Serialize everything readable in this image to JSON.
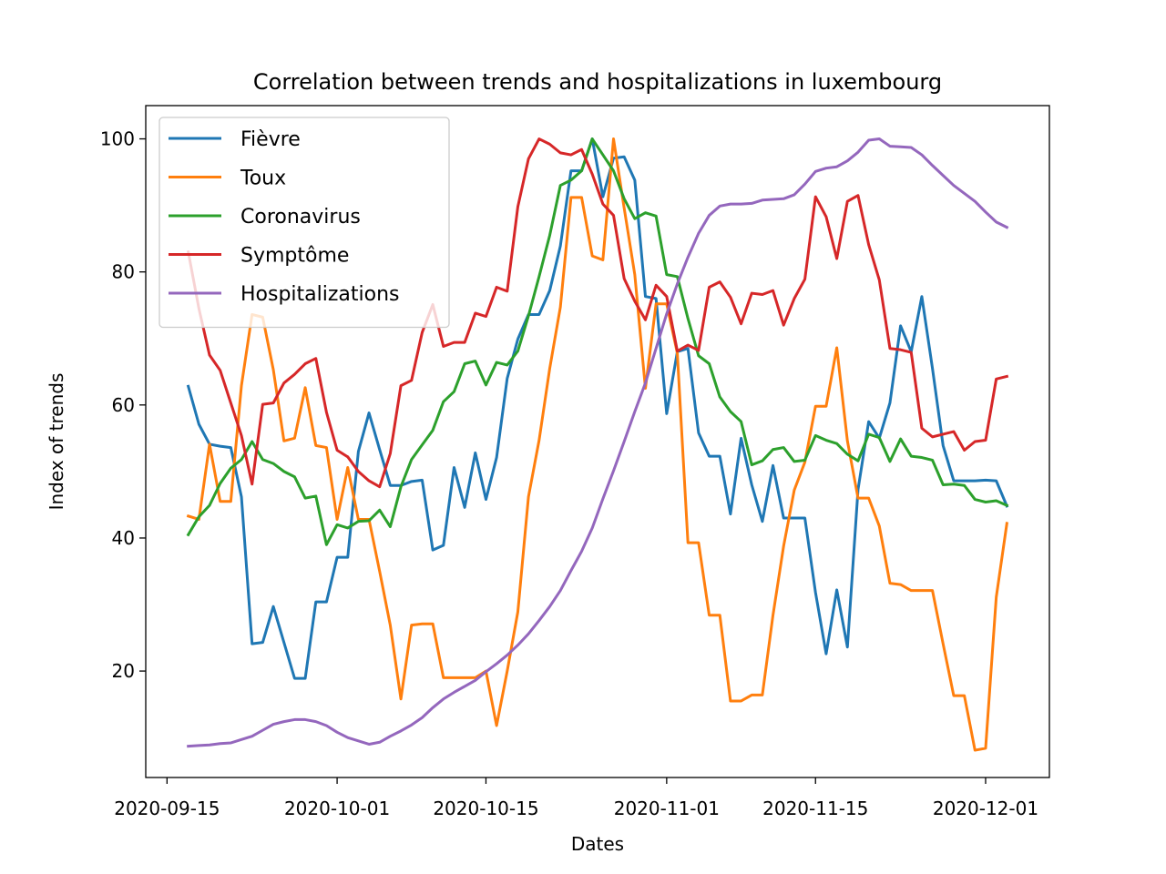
{
  "chart_data": {
    "type": "line",
    "title": "Correlation between trends and hospitalizations in luxembourg",
    "xlabel": "Dates",
    "ylabel": "Index of trends",
    "x_start": "2020-09-17",
    "x_step_days": 1,
    "xlim": [
      "2020-09-13",
      "2020-12-07"
    ],
    "ylim": [
      4,
      105
    ],
    "xticks": [
      "2020-09-15",
      "2020-10-01",
      "2020-10-15",
      "2020-11-01",
      "2020-11-15",
      "2020-12-01"
    ],
    "yticks": [
      20,
      40,
      60,
      80,
      100
    ],
    "grid": false,
    "legend_position": "top-left",
    "series": [
      {
        "name": "Fièvre",
        "color": "#1f77b4",
        "values": [
          62.8,
          57.1,
          54.1,
          53.8,
          53.6,
          46.2,
          24.1,
          24.3,
          29.7,
          24.3,
          18.9,
          18.9,
          30.4,
          30.4,
          37.1,
          37.1,
          53.0,
          58.8,
          53.3,
          47.9,
          47.9,
          48.5,
          48.7,
          38.2,
          38.9,
          50.6,
          44.6,
          52.8,
          45.8,
          52.1,
          64.0,
          69.9,
          73.6,
          73.6,
          77.2,
          83.9,
          95.2,
          95.2,
          100.0,
          91.3,
          97.1,
          97.3,
          93.8,
          76.3,
          76.0,
          58.7,
          68.0,
          68.5,
          55.8,
          52.3,
          52.3,
          43.6,
          55.0,
          48.0,
          42.5,
          50.9,
          43.0,
          43.0,
          43.0,
          31.8,
          22.6,
          32.2,
          23.6,
          47.3,
          57.5,
          55.0,
          60.3,
          71.9,
          68.0,
          76.3,
          65.5,
          53.9,
          48.6,
          48.6,
          48.6,
          48.7,
          48.6,
          44.8
        ]
      },
      {
        "name": "Toux",
        "color": "#ff7f0e",
        "values": [
          43.3,
          42.8,
          54.1,
          45.5,
          45.5,
          62.9,
          73.6,
          73.2,
          65.3,
          54.6,
          55.0,
          62.6,
          53.9,
          53.6,
          42.8,
          50.6,
          42.8,
          42.8,
          35.0,
          26.9,
          15.8,
          26.9,
          27.1,
          27.1,
          19.0,
          19.0,
          19.0,
          19.0,
          20.0,
          11.8,
          20.0,
          28.9,
          46.2,
          54.7,
          65.5,
          74.7,
          91.2,
          91.2,
          82.4,
          81.8,
          100.0,
          89.6,
          79.6,
          62.5,
          75.2,
          75.2,
          67.8,
          39.3,
          39.3,
          28.4,
          28.4,
          15.5,
          15.5,
          16.4,
          16.4,
          28.4,
          38.8,
          47.2,
          51.4,
          59.8,
          59.8,
          68.6,
          54.6,
          46.0,
          46.0,
          41.8,
          33.2,
          33.0,
          32.1,
          32.1,
          32.1,
          24.1,
          16.3,
          16.3,
          8.1,
          8.4,
          31.1,
          42.2
        ]
      },
      {
        "name": "Coronavirus",
        "color": "#2ca02c",
        "values": [
          40.5,
          43.2,
          44.9,
          48.2,
          50.5,
          51.8,
          54.5,
          51.8,
          51.2,
          50.0,
          49.2,
          46.0,
          46.3,
          39.0,
          42.0,
          41.5,
          42.5,
          42.6,
          44.2,
          41.7,
          47.7,
          51.8,
          54.0,
          56.2,
          60.5,
          62.0,
          66.2,
          66.6,
          63.0,
          66.4,
          66.0,
          68.1,
          73.4,
          79.3,
          85.5,
          93.0,
          93.8,
          95.2,
          100.0,
          97.6,
          95.2,
          91.0,
          88.0,
          88.9,
          88.4,
          79.6,
          79.3,
          73.0,
          67.4,
          66.2,
          61.2,
          59.0,
          57.5,
          51.0,
          51.6,
          53.3,
          53.6,
          51.5,
          51.7,
          55.4,
          54.7,
          54.2,
          52.6,
          51.6,
          55.6,
          55.1,
          51.5,
          54.9,
          52.3,
          52.1,
          51.7,
          48.0,
          48.1,
          47.9,
          45.8,
          45.4,
          45.6,
          44.9
        ]
      },
      {
        "name": "Symptôme",
        "color": "#d62728",
        "values": [
          83.0,
          74.5,
          67.5,
          65.2,
          60.3,
          55.4,
          48.1,
          60.1,
          60.3,
          63.3,
          64.6,
          66.2,
          67.0,
          58.9,
          53.2,
          52.2,
          50.0,
          48.6,
          47.7,
          52.7,
          62.9,
          63.7,
          70.9,
          75.1,
          68.8,
          69.4,
          69.4,
          73.8,
          73.3,
          77.7,
          77.1,
          89.8,
          97.0,
          100.0,
          99.2,
          97.9,
          97.6,
          98.4,
          94.7,
          90.2,
          88.5,
          79.0,
          75.6,
          72.8,
          78.0,
          76.3,
          68.1,
          69.0,
          68.2,
          77.7,
          78.5,
          76.2,
          72.2,
          76.8,
          76.6,
          77.2,
          72.0,
          76.0,
          78.9,
          91.3,
          88.3,
          82.0,
          90.6,
          91.5,
          84.1,
          78.8,
          68.5,
          68.3,
          67.9,
          56.5,
          55.2,
          55.6,
          56.0,
          53.2,
          54.5,
          54.7,
          63.9,
          64.3
        ]
      },
      {
        "name": "Hospitalizations",
        "color": "#9467bd",
        "values": [
          8.7,
          8.8,
          8.9,
          9.1,
          9.2,
          9.7,
          10.2,
          11.1,
          12.0,
          12.4,
          12.7,
          12.7,
          12.4,
          11.8,
          10.8,
          10.0,
          9.5,
          9.0,
          9.3,
          10.2,
          11.0,
          11.9,
          13.0,
          14.5,
          15.8,
          16.8,
          17.7,
          18.6,
          19.9,
          21.1,
          22.4,
          23.9,
          25.6,
          27.6,
          29.7,
          32.1,
          35.1,
          38.0,
          41.5,
          45.9,
          50.1,
          54.5,
          59.0,
          63.3,
          68.5,
          73.7,
          78.2,
          82.2,
          85.8,
          88.5,
          89.9,
          90.2,
          90.2,
          90.3,
          90.8,
          90.9,
          91.0,
          91.6,
          93.2,
          95.1,
          95.6,
          95.8,
          96.7,
          98.0,
          99.8,
          100.0,
          98.9,
          98.8,
          98.7,
          97.6,
          96.0,
          94.5,
          93.0,
          91.8,
          90.6,
          89.0,
          87.5,
          86.7
        ]
      }
    ]
  }
}
